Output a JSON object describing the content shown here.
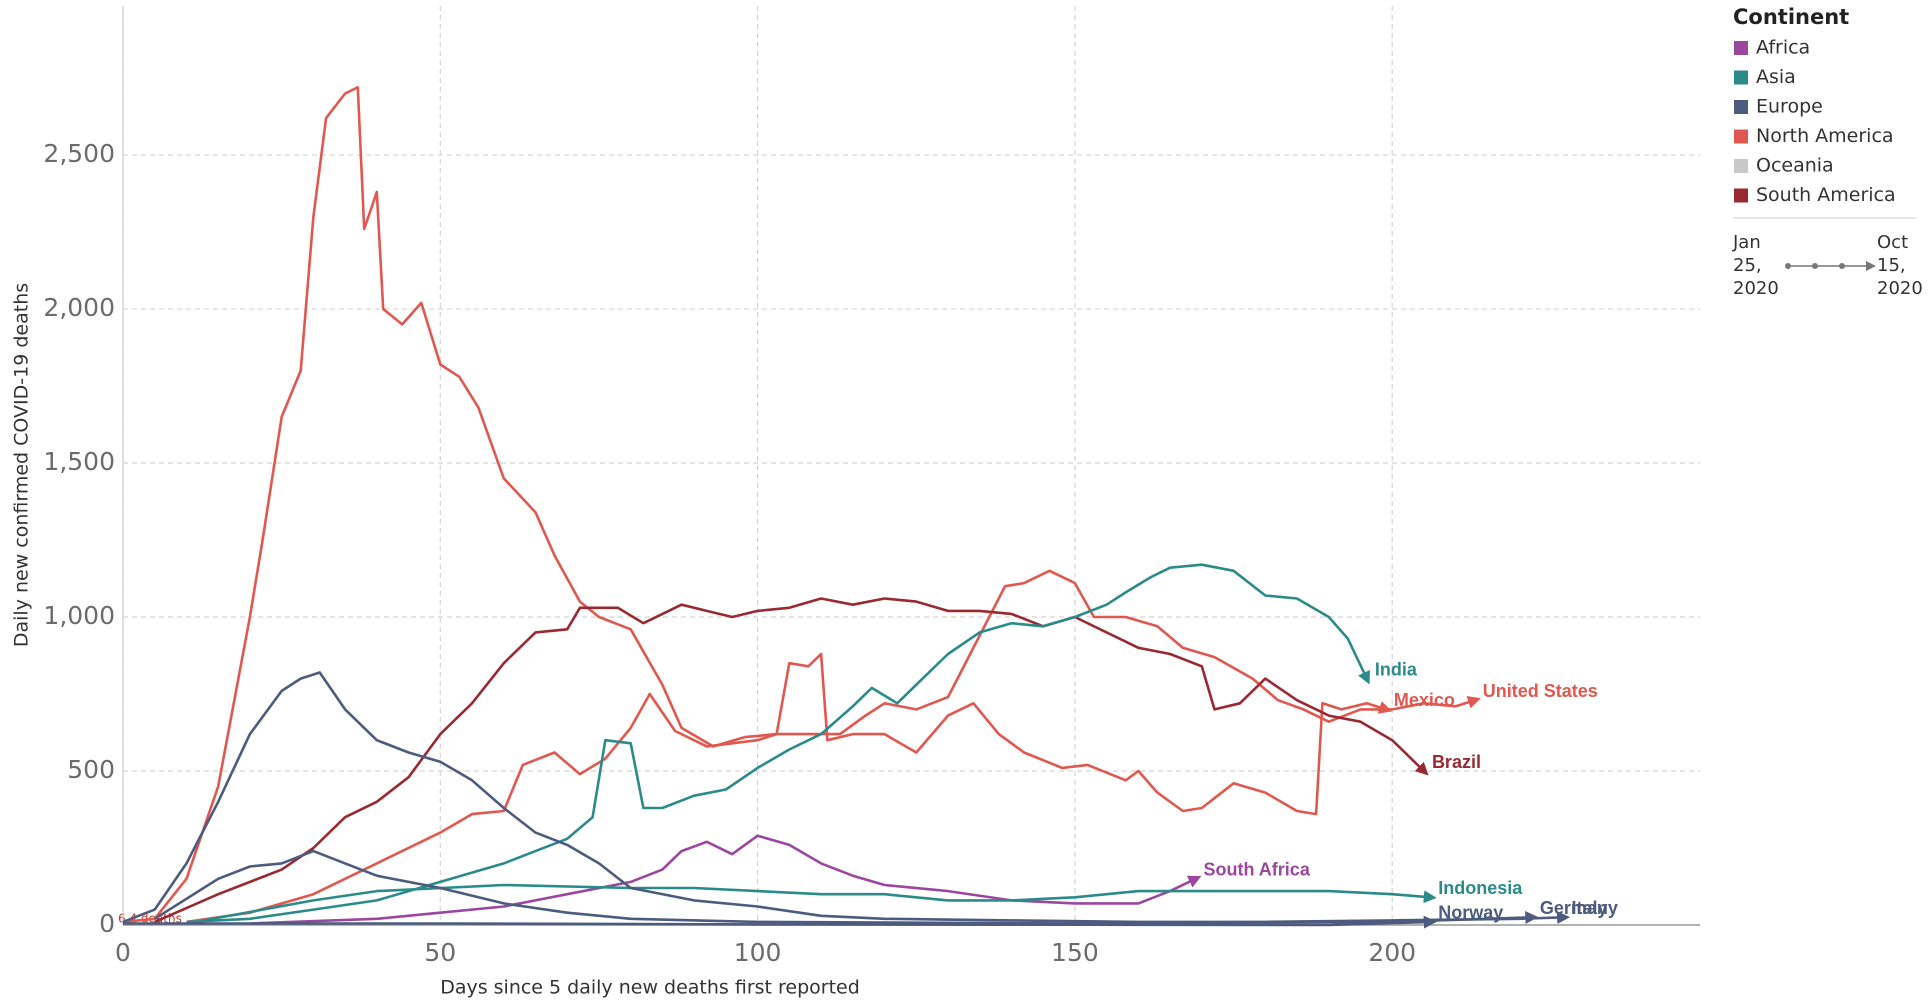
{
  "chart_data": {
    "type": "line",
    "x_label": "Days since 5 daily new deaths first reported",
    "y_label": "Daily new confirmed COVID-19 deaths",
    "annotations": [
      "6.4 deaths"
    ],
    "xlim": [
      0,
      248.5
    ],
    "ylim": [
      0,
      2984
    ],
    "xticks": [
      0,
      50,
      100,
      150,
      200
    ],
    "yticks": [
      0,
      500,
      {
        "value": 1000,
        "label": "1,000"
      },
      {
        "value": 1500,
        "label": "1,500"
      },
      {
        "value": 2000,
        "label": "2,000"
      },
      {
        "value": 2500,
        "label": "2,500"
      }
    ],
    "grid": true,
    "legend_title": "Continent",
    "legend": [
      {
        "name": "Africa",
        "color": "#9b479f"
      },
      {
        "name": "Asia",
        "color": "#2b8b8b"
      },
      {
        "name": "Europe",
        "color": "#4c5b7e"
      },
      {
        "name": "North America",
        "color": "#e0584f"
      },
      {
        "name": "Oceania",
        "color": "#c8c8c8"
      },
      {
        "name": "South America",
        "color": "#992a32"
      }
    ],
    "timeline": {
      "start": [
        "Jan",
        "25,",
        "2020"
      ],
      "end": [
        "Oct",
        "15,",
        "2020"
      ]
    },
    "series": [
      {
        "name": "United States",
        "color": "#e0584f",
        "x": [
          0,
          5,
          10,
          15,
          20,
          22,
          25,
          28,
          30,
          32,
          35,
          37,
          38,
          40,
          41,
          44,
          47,
          50,
          53,
          56,
          60,
          65,
          68,
          72,
          75,
          80,
          85,
          88,
          93,
          98,
          103,
          108,
          113,
          117,
          120,
          125,
          130,
          135,
          139,
          142,
          146,
          150,
          153,
          158,
          163,
          167,
          172,
          178,
          182,
          186,
          190,
          195,
          200,
          205,
          210,
          213
        ],
        "values": [
          10,
          20,
          150,
          450,
          1000,
          1250,
          1650,
          1800,
          2300,
          2620,
          2700,
          2720,
          2260,
          2380,
          2000,
          1950,
          2020,
          1820,
          1780,
          1680,
          1450,
          1340,
          1200,
          1050,
          1000,
          960,
          780,
          640,
          580,
          610,
          620,
          620,
          620,
          680,
          720,
          700,
          740,
          940,
          1100,
          1110,
          1150,
          1110,
          1000,
          1000,
          970,
          900,
          870,
          800,
          730,
          700,
          660,
          700,
          700,
          720,
          710,
          730
        ]
      },
      {
        "name": "Mexico",
        "color": "#e0584f",
        "x": [
          10,
          20,
          30,
          40,
          50,
          55,
          60,
          63,
          68,
          72,
          76,
          80,
          83,
          87,
          92,
          100,
          103,
          105,
          108,
          110,
          111,
          115,
          120,
          125,
          130,
          134,
          138,
          142,
          148,
          152,
          158,
          160,
          163,
          167,
          170,
          175,
          180,
          185,
          188,
          189,
          192,
          196,
          199
        ],
        "values": [
          10,
          40,
          100,
          200,
          300,
          360,
          370,
          520,
          560,
          490,
          540,
          640,
          750,
          630,
          580,
          600,
          620,
          850,
          840,
          880,
          600,
          620,
          620,
          560,
          680,
          720,
          620,
          560,
          510,
          520,
          470,
          500,
          430,
          370,
          380,
          460,
          430,
          370,
          360,
          720,
          700,
          720,
          700
        ]
      },
      {
        "name": "Brazil",
        "color": "#992a32",
        "x": [
          5,
          15,
          25,
          30,
          35,
          40,
          45,
          50,
          55,
          60,
          65,
          70,
          72,
          78,
          82,
          88,
          92,
          96,
          100,
          105,
          110,
          115,
          120,
          125,
          130,
          135,
          140,
          145,
          150,
          155,
          160,
          165,
          170,
          172,
          176,
          180,
          185,
          190,
          195,
          200,
          205
        ],
        "values": [
          10,
          100,
          180,
          250,
          350,
          400,
          480,
          620,
          720,
          850,
          950,
          960,
          1030,
          1030,
          980,
          1040,
          1020,
          1000,
          1020,
          1030,
          1060,
          1040,
          1060,
          1050,
          1020,
          1020,
          1010,
          970,
          1000,
          950,
          900,
          880,
          840,
          700,
          720,
          800,
          730,
          680,
          660,
          600,
          500
        ]
      },
      {
        "name": "India",
        "color": "#2b8b8b",
        "x": [
          10,
          20,
          30,
          40,
          50,
          55,
          60,
          65,
          70,
          74,
          76,
          80,
          82,
          85,
          90,
          95,
          100,
          105,
          110,
          115,
          118,
          122,
          126,
          130,
          135,
          140,
          145,
          150,
          155,
          158,
          162,
          165,
          170,
          175,
          180,
          185,
          190,
          193,
          196
        ],
        "values": [
          10,
          20,
          50,
          80,
          140,
          170,
          200,
          240,
          280,
          350,
          600,
          590,
          380,
          380,
          420,
          440,
          510,
          570,
          620,
          710,
          770,
          720,
          800,
          880,
          950,
          980,
          970,
          1000,
          1040,
          1080,
          1130,
          1160,
          1170,
          1150,
          1070,
          1060,
          1000,
          930,
          800
        ]
      },
      {
        "name": "South Africa",
        "color": "#9b479f",
        "x": [
          20,
          40,
          50,
          60,
          70,
          80,
          85,
          88,
          92,
          96,
          100,
          105,
          110,
          115,
          120,
          130,
          140,
          150,
          160,
          165,
          169
        ],
        "values": [
          5,
          20,
          40,
          60,
          100,
          140,
          180,
          240,
          270,
          230,
          290,
          260,
          200,
          160,
          130,
          110,
          80,
          70,
          70,
          110,
          150
        ]
      },
      {
        "name": "Indonesia",
        "color": "#2b8b8b",
        "x": [
          10,
          30,
          40,
          60,
          80,
          90,
          100,
          110,
          120,
          130,
          140,
          150,
          160,
          170,
          180,
          190,
          200,
          206
        ],
        "values": [
          5,
          80,
          110,
          130,
          120,
          120,
          110,
          100,
          100,
          80,
          80,
          90,
          110,
          110,
          110,
          110,
          100,
          90
        ]
      },
      {
        "name": "Norway",
        "color": "#4c5b7e",
        "x": [
          0,
          50,
          100,
          150,
          190,
          206
        ],
        "values": [
          5,
          5,
          2,
          1,
          0,
          10
        ]
      },
      {
        "name": "Germany",
        "color": "#4c5b7e",
        "x": [
          5,
          15,
          20,
          25,
          30,
          35,
          40,
          50,
          60,
          70,
          80,
          100,
          150,
          200,
          222
        ],
        "values": [
          20,
          150,
          190,
          200,
          240,
          200,
          160,
          120,
          70,
          40,
          20,
          10,
          5,
          10,
          25
        ]
      },
      {
        "name": "Italy",
        "color": "#4c5b7e",
        "x": [
          0,
          5,
          10,
          15,
          20,
          25,
          28,
          31,
          35,
          40,
          45,
          50,
          55,
          60,
          65,
          70,
          75,
          80,
          90,
          100,
          110,
          120,
          140,
          160,
          180,
          200,
          220,
          227
        ],
        "values": [
          10,
          50,
          200,
          400,
          620,
          760,
          800,
          820,
          700,
          600,
          560,
          530,
          470,
          380,
          300,
          260,
          200,
          120,
          80,
          60,
          30,
          20,
          15,
          10,
          10,
          15,
          20,
          25
        ]
      }
    ]
  }
}
